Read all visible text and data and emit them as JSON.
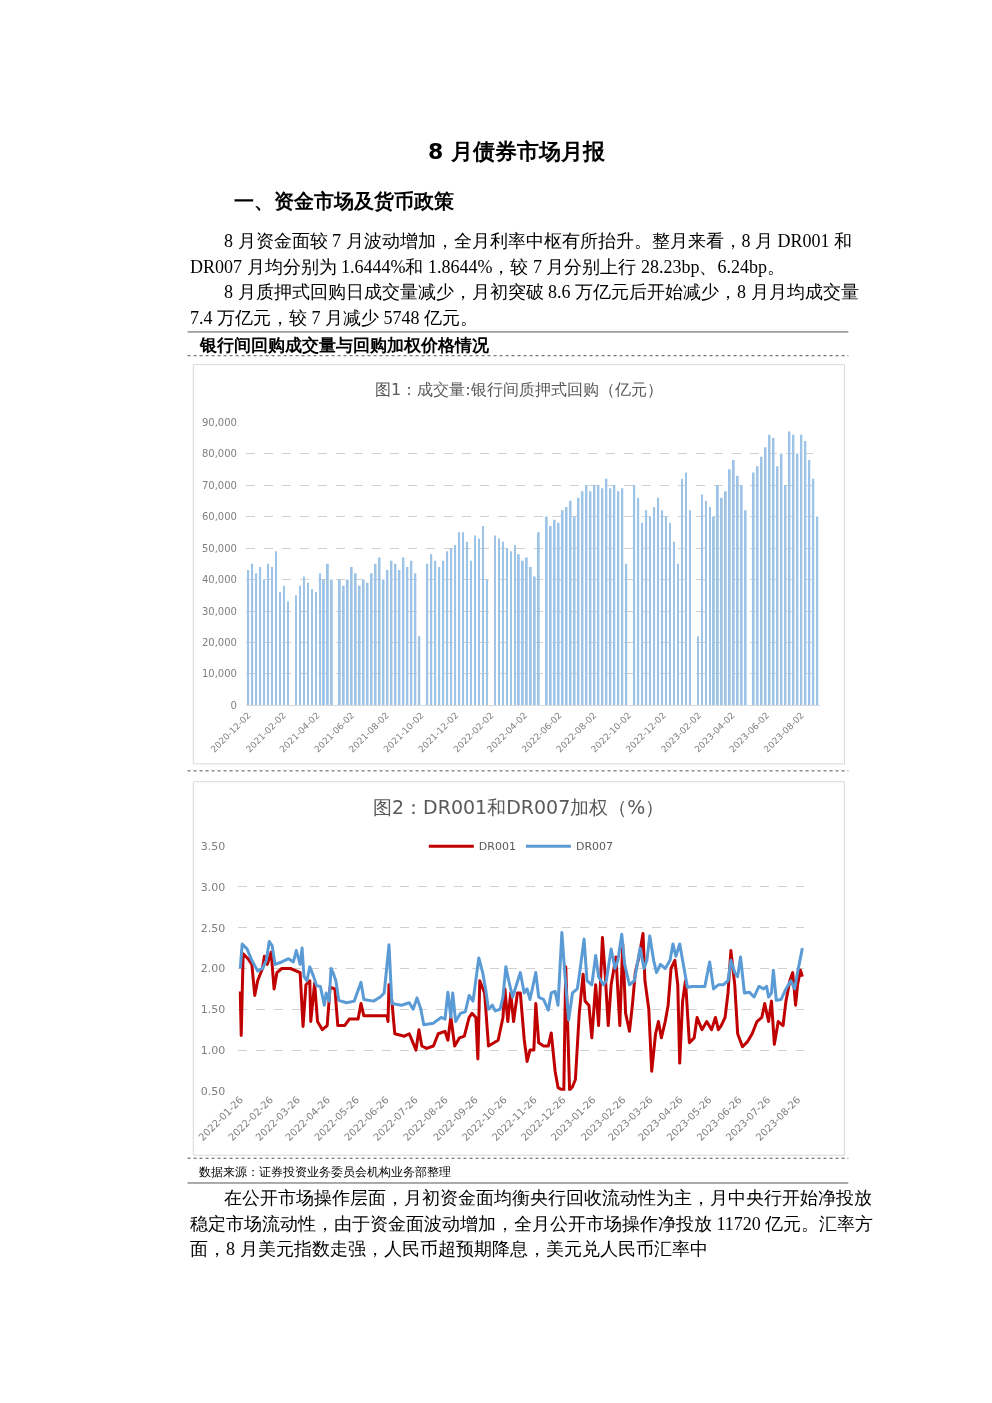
{
  "chart_data": [
    {
      "type": "bar",
      "title": "图1：成交量:银行间质押式回购（亿元）",
      "annotations": [
        "8 月债券市场月报",
        "一、资金市场及货币政策",
        "8 月资金面较 7 月波动增加，全月利率中枢有所抬升。整月来看，8 月 DR001 和 DR007 月均分别为 1.6444%和 1.8644%，较 7 月分别上行 28.23bp、6.24bp。",
        "8 月质押式回购日成交量减少，月初突破 8.6 万亿元后开始减少，8 月月均成交量 7.4 万亿元，较 7 月减少 5748 亿元。",
        "银行间回购成交量与回购加权价格情况"
      ],
      "x": [
        "2020-12-02",
        "2020-12-09",
        "2020-12-16",
        "2020-12-23",
        "2020-12-30",
        "2021-01-06",
        "2021-01-13",
        "2021-01-20",
        "2021-01-27",
        "2021-02-03",
        "2021-02-10",
        "2021-02-17",
        "2021-02-24",
        "2021-03-03",
        "2021-03-10",
        "2021-03-17",
        "2021-03-24",
        "2021-03-31",
        "2021-04-07",
        "2021-04-14",
        "2021-04-21",
        "2021-04-28",
        "2021-05-05",
        "2021-05-12",
        "2021-05-19",
        "2021-05-26",
        "2021-06-02",
        "2021-06-09",
        "2021-06-16",
        "2021-06-23",
        "2021-06-30",
        "2021-07-07",
        "2021-07-14",
        "2021-07-21",
        "2021-07-28",
        "2021-08-04",
        "2021-08-11",
        "2021-08-18",
        "2021-08-25",
        "2021-09-01",
        "2021-09-08",
        "2021-09-15",
        "2021-09-22",
        "2021-09-29",
        "2021-10-06",
        "2021-10-13",
        "2021-10-20",
        "2021-10-27",
        "2021-11-03",
        "2021-11-10",
        "2021-11-17",
        "2021-11-24",
        "2021-12-01",
        "2021-12-08",
        "2021-12-15",
        "2021-12-22",
        "2021-12-29",
        "2022-01-05",
        "2022-01-12",
        "2022-01-19",
        "2022-01-26",
        "2022-02-02",
        "2022-02-09",
        "2022-02-16",
        "2022-02-23",
        "2022-03-02",
        "2022-03-09",
        "2022-03-16",
        "2022-03-23",
        "2022-03-30",
        "2022-04-06",
        "2022-04-13",
        "2022-04-20",
        "2022-04-27",
        "2022-05-04",
        "2022-05-11",
        "2022-05-18",
        "2022-05-25",
        "2022-06-01",
        "2022-06-08",
        "2022-06-15",
        "2022-06-22",
        "2022-06-29",
        "2022-07-06",
        "2022-07-13",
        "2022-07-20",
        "2022-07-27",
        "2022-08-03",
        "2022-08-10",
        "2022-08-17",
        "2022-08-24",
        "2022-08-31",
        "2022-09-07",
        "2022-09-14",
        "2022-09-21",
        "2022-09-28",
        "2022-10-05",
        "2022-10-12",
        "2022-10-19",
        "2022-10-26",
        "2022-11-02",
        "2022-11-09",
        "2022-11-16",
        "2022-11-23",
        "2022-11-30",
        "2022-12-07",
        "2022-12-14",
        "2022-12-21",
        "2022-12-28",
        "2023-01-04",
        "2023-01-11",
        "2023-01-18",
        "2023-01-25",
        "2023-02-01",
        "2023-02-08",
        "2023-02-15",
        "2023-02-22",
        "2023-03-01",
        "2023-03-08",
        "2023-03-15",
        "2023-03-22",
        "2023-03-29",
        "2023-04-05",
        "2023-04-12",
        "2023-04-19",
        "2023-04-26",
        "2023-05-03",
        "2023-05-10",
        "2023-05-17",
        "2023-05-24",
        "2023-05-31",
        "2023-06-07",
        "2023-06-14",
        "2023-06-21",
        "2023-06-28",
        "2023-07-05",
        "2023-07-12",
        "2023-07-19",
        "2023-07-26",
        "2023-08-02",
        "2023-08-09",
        "2023-08-16",
        "2023-08-23",
        "2023-08-30"
      ],
      "values": [
        43000,
        45000,
        42000,
        44000,
        40000,
        45000,
        44000,
        49000,
        36000,
        38000,
        33000,
        null,
        35000,
        38000,
        41000,
        39000,
        37000,
        36000,
        42000,
        40000,
        45000,
        40000,
        null,
        40000,
        38000,
        40000,
        44000,
        42000,
        38000,
        40000,
        39000,
        42000,
        45000,
        47000,
        40000,
        43000,
        46000,
        45000,
        43000,
        47000,
        44000,
        46000,
        42000,
        22000,
        null,
        45000,
        48000,
        46000,
        44000,
        46000,
        49000,
        50000,
        51000,
        55000,
        55000,
        52000,
        46000,
        54000,
        53000,
        57000,
        40000,
        null,
        54000,
        53000,
        52000,
        50000,
        49000,
        51000,
        48000,
        46000,
        47000,
        44000,
        41000,
        55000,
        null,
        60000,
        57000,
        59000,
        58000,
        62000,
        63000,
        65000,
        60000,
        66000,
        68000,
        70000,
        68000,
        70000,
        70000,
        69000,
        72000,
        69000,
        70000,
        68000,
        69000,
        45000,
        null,
        70000,
        66000,
        58000,
        62000,
        60000,
        63000,
        66000,
        62000,
        60000,
        58000,
        52000,
        45000,
        72000,
        74000,
        62000,
        null,
        22000,
        67000,
        65000,
        63000,
        60000,
        70000,
        66000,
        68000,
        75000,
        78000,
        73000,
        70000,
        62000,
        null,
        74000,
        76000,
        79000,
        82000,
        86000,
        85000,
        76000,
        80000,
        70000,
        87000,
        86000,
        80000,
        86000,
        84000,
        78000,
        72000,
        60000
      ],
      "color": "#9dc3e6",
      "xlim": [
        "2020-11-28",
        "2023-09-03"
      ],
      "xticks": [
        "2020-12-02",
        "2021-02-02",
        "2021-04-02",
        "2021-06-02",
        "2021-08-02",
        "2021-10-02",
        "2021-12-02",
        "2022-02-02",
        "2022-04-02",
        "2022-06-02",
        "2022-08-02",
        "2022-10-02",
        "2022-12-02",
        "2023-02-02",
        "2023-04-02",
        "2023-06-02",
        "2023-08-02"
      ],
      "ylim": [
        0,
        90000
      ],
      "yticks": [
        0,
        {
          "value": 10000,
          "label": "10,000"
        },
        {
          "value": 20000,
          "label": "20,000"
        },
        {
          "value": 30000,
          "label": "30,000"
        },
        {
          "value": 40000,
          "label": "40,000"
        },
        {
          "value": 50000,
          "label": "50,000"
        },
        {
          "value": 60000,
          "label": "60,000"
        },
        {
          "value": 70000,
          "label": "70,000"
        },
        {
          "value": 80000,
          "label": "80,000"
        },
        {
          "value": 90000,
          "label": "90,000"
        }
      ],
      "grid": "y"
    },
    {
      "type": "line",
      "title": "图2：DR001和DR007加权（%）",
      "annotations": [
        "数据来源：证券投资业务委员会机构业务部整理",
        "在公开市场操作层面，月初资金面均衡央行回收流动性为主，月中央行开始净投放稳定市场流动性，由于资金面波动增加，全月公开市场操作净投放 11720 亿元。汇率方面，8 月美元指数走强，人民币超预期降息，美元兑人民币汇率中"
      ],
      "series": [
        {
          "name": "DR001",
          "color": "#c00000",
          "x": [
            "2022-01-26",
            "2022-01-27",
            "2022-01-29",
            "2022-02-03",
            "2022-02-07",
            "2022-02-10",
            "2022-02-13",
            "2022-02-18",
            "2022-02-20",
            "2022-02-23",
            "2022-02-27",
            "2022-03-02",
            "2022-03-05",
            "2022-03-10",
            "2022-03-19",
            "2022-03-29",
            "2022-04-01",
            "2022-04-04",
            "2022-04-08",
            "2022-04-09",
            "2022-04-13",
            "2022-04-16",
            "2022-04-21",
            "2022-04-26",
            "2022-04-29",
            "2022-05-04",
            "2022-05-07",
            "2022-05-14",
            "2022-05-19",
            "2022-05-28",
            "2022-05-31",
            "2022-06-03",
            "2022-06-13",
            "2022-06-27",
            "2022-06-28",
            "2022-06-29",
            "2022-07-02",
            "2022-07-05",
            "2022-07-15",
            "2022-07-20",
            "2022-07-27",
            "2022-07-30",
            "2022-08-02",
            "2022-08-07",
            "2022-08-14",
            "2022-08-19",
            "2022-08-26",
            "2022-08-29",
            "2022-09-01",
            "2022-09-05",
            "2022-09-10",
            "2022-09-15",
            "2022-09-20",
            "2022-09-23",
            "2022-09-27",
            "2022-09-29",
            "2022-10-01",
            "2022-10-06",
            "2022-10-10",
            "2022-10-20",
            "2022-10-25",
            "2022-10-27",
            "2022-10-30",
            "2022-11-02",
            "2022-11-05",
            "2022-11-09",
            "2022-11-12",
            "2022-11-16",
            "2022-11-19",
            "2022-11-22",
            "2022-11-26",
            "2022-11-28",
            "2022-12-01",
            "2022-12-06",
            "2022-12-11",
            "2022-12-14",
            "2022-12-18",
            "2022-12-21",
            "2022-12-27",
            "2022-12-29",
            "2022-12-31",
            "2023-01-02",
            "2023-01-05",
            "2023-01-08",
            "2023-01-12",
            "2023-01-16",
            "2023-01-18",
            "2023-01-22",
            "2023-01-25",
            "2023-01-29",
            "2023-02-01",
            "2023-02-05",
            "2023-02-08",
            "2023-02-11",
            "2023-02-14",
            "2023-02-19",
            "2023-02-23",
            "2023-02-26",
            "2023-03-01",
            "2023-03-05",
            "2023-03-08",
            "2023-03-11",
            "2023-03-15",
            "2023-03-19",
            "2023-03-21",
            "2023-03-25",
            "2023-03-28",
            "2023-04-01",
            "2023-04-04",
            "2023-04-07",
            "2023-04-11",
            "2023-04-14",
            "2023-04-17",
            "2023-04-21",
            "2023-04-24",
            "2023-04-26",
            "2023-04-29",
            "2023-05-02",
            "2023-05-06",
            "2023-05-11",
            "2023-05-14",
            "2023-05-19",
            "2023-05-24",
            "2023-05-29",
            "2023-06-02",
            "2023-06-05",
            "2023-06-08",
            "2023-06-12",
            "2023-06-15",
            "2023-06-18",
            "2023-06-22",
            "2023-06-25",
            "2023-06-30",
            "2023-07-05",
            "2023-07-10",
            "2023-07-15",
            "2023-07-20",
            "2023-07-23",
            "2023-07-27",
            "2023-07-30",
            "2023-08-02",
            "2023-08-06",
            "2023-08-11",
            "2023-08-14",
            "2023-08-18",
            "2023-08-21",
            "2023-08-24",
            "2023-08-26",
            "2023-08-29",
            "2023-08-31"
          ],
          "values": [
            1.72,
            1.18,
            2.18,
            2.12,
            2.05,
            1.67,
            1.85,
            2.0,
            2.15,
            2.05,
            2.2,
            1.75,
            1.95,
            2.0,
            2.0,
            1.95,
            1.29,
            1.8,
            1.85,
            1.35,
            1.82,
            1.35,
            1.25,
            1.3,
            1.77,
            1.75,
            1.3,
            1.3,
            1.38,
            1.38,
            1.57,
            1.42,
            1.42,
            1.42,
            1.35,
            1.8,
            1.6,
            1.2,
            1.17,
            1.2,
            1.0,
            1.25,
            1.05,
            1.02,
            1.05,
            1.2,
            1.23,
            1.12,
            1.41,
            1.05,
            1.15,
            1.17,
            1.4,
            1.45,
            1.4,
            0.89,
            1.85,
            1.7,
            1.05,
            1.12,
            1.4,
            1.75,
            1.35,
            1.7,
            1.35,
            1.7,
            1.7,
            1.13,
            0.86,
            1.0,
            1.0,
            1.57,
            1.09,
            1.05,
            1.05,
            1.21,
            0.74,
            0.54,
            0.5,
            2.02,
            1.3,
            0.51,
            0.55,
            0.64,
            1.45,
            1.93,
            1.6,
            1.55,
            1.15,
            1.8,
            1.3,
            2.38,
            1.9,
            1.3,
            1.8,
            2.14,
            1.3,
            2.3,
            1.45,
            1.23,
            1.55,
            1.95,
            2.15,
            2.43,
            1.85,
            1.5,
            0.74,
            1.2,
            1.35,
            1.15,
            1.35,
            1.55,
            2.0,
            2.1,
            1.8,
            0.84,
            1.6,
            1.85,
            1.09,
            1.15,
            1.4,
            1.25,
            1.35,
            1.25,
            1.4,
            1.25,
            1.3,
            1.4,
            1.7,
            2.22,
            1.8,
            1.2,
            1.04,
            1.1,
            1.2,
            1.35,
            1.4,
            1.57,
            1.35,
            1.6,
            1.07,
            1.35,
            1.3,
            1.6,
            1.85,
            1.95,
            1.55,
            1.8,
            1.98,
            1.9
          ]
        },
        {
          "name": "DR007",
          "color": "#5b9bd5",
          "x": [
            "2022-01-26",
            "2022-01-28",
            "2022-02-02",
            "2022-02-07",
            "2022-02-13",
            "2022-02-18",
            "2022-02-22",
            "2022-02-25",
            "2022-02-28",
            "2022-03-03",
            "2022-03-10",
            "2022-03-17",
            "2022-03-22",
            "2022-03-25",
            "2022-03-29",
            "2022-03-31",
            "2022-04-02",
            "2022-04-05",
            "2022-04-08",
            "2022-04-12",
            "2022-04-15",
            "2022-04-19",
            "2022-04-23",
            "2022-04-25",
            "2022-04-28",
            "2022-04-30",
            "2022-05-02",
            "2022-05-05",
            "2022-05-08",
            "2022-05-16",
            "2022-05-24",
            "2022-05-27",
            "2022-05-31",
            "2022-06-03",
            "2022-06-13",
            "2022-06-20",
            "2022-06-24",
            "2022-06-29",
            "2022-07-02",
            "2022-07-12",
            "2022-07-20",
            "2022-07-24",
            "2022-07-28",
            "2022-08-01",
            "2022-08-04",
            "2022-08-14",
            "2022-08-22",
            "2022-08-26",
            "2022-08-29",
            "2022-09-01",
            "2022-09-03",
            "2022-09-06",
            "2022-09-11",
            "2022-09-16",
            "2022-09-20",
            "2022-09-24",
            "2022-09-30",
            "2022-10-04",
            "2022-10-07",
            "2022-10-10",
            "2022-10-14",
            "2022-10-17",
            "2022-10-22",
            "2022-10-25",
            "2022-10-28",
            "2022-10-31",
            "2022-11-04",
            "2022-11-08",
            "2022-11-12",
            "2022-11-16",
            "2022-11-19",
            "2022-11-22",
            "2022-11-28",
            "2022-12-01",
            "2022-12-06",
            "2022-12-11",
            "2022-12-14",
            "2022-12-18",
            "2022-12-21",
            "2022-12-25",
            "2022-12-28",
            "2023-01-01",
            "2023-01-05",
            "2023-01-10",
            "2023-01-13",
            "2023-01-17",
            "2023-01-20",
            "2023-01-25",
            "2023-01-29",
            "2023-02-01",
            "2023-02-06",
            "2023-02-09",
            "2023-02-14",
            "2023-02-18",
            "2023-02-21",
            "2023-02-25",
            "2023-02-28",
            "2023-03-05",
            "2023-03-10",
            "2023-03-13",
            "2023-03-16",
            "2023-03-20",
            "2023-03-23",
            "2023-03-26",
            "2023-03-30",
            "2023-04-02",
            "2023-04-06",
            "2023-04-11",
            "2023-04-16",
            "2023-04-19",
            "2023-04-22",
            "2023-04-26",
            "2023-04-29",
            "2023-05-04",
            "2023-05-09",
            "2023-05-16",
            "2023-05-22",
            "2023-05-27",
            "2023-05-31",
            "2023-06-05",
            "2023-06-10",
            "2023-06-15",
            "2023-06-18",
            "2023-06-22",
            "2023-06-25",
            "2023-06-28",
            "2023-07-02",
            "2023-07-07",
            "2023-07-12",
            "2023-07-17",
            "2023-07-22",
            "2023-07-25",
            "2023-07-27",
            "2023-07-30",
            "2023-08-01",
            "2023-08-04",
            "2023-08-09",
            "2023-08-14",
            "2023-08-19",
            "2023-08-23",
            "2023-08-26",
            "2023-08-31"
          ],
          "values": [
            2.0,
            2.3,
            2.24,
            2.1,
            1.97,
            2.0,
            2.1,
            2.33,
            2.28,
            2.05,
            2.08,
            2.12,
            2.08,
            2.22,
            2.05,
            2.25,
            1.9,
            1.85,
            2.02,
            1.9,
            1.79,
            1.78,
            1.55,
            1.7,
            1.6,
            2.0,
            1.95,
            1.85,
            1.61,
            1.58,
            1.6,
            1.7,
            1.83,
            1.62,
            1.6,
            1.65,
            1.7,
            2.29,
            1.57,
            1.55,
            1.58,
            1.5,
            1.64,
            1.5,
            1.31,
            1.33,
            1.4,
            1.38,
            1.71,
            1.4,
            1.7,
            1.35,
            1.45,
            1.47,
            1.67,
            1.6,
            2.13,
            1.95,
            1.75,
            1.5,
            1.55,
            1.48,
            1.5,
            1.65,
            2.02,
            1.85,
            1.65,
            1.8,
            1.95,
            1.7,
            1.75,
            1.62,
            1.95,
            1.65,
            1.62,
            1.49,
            1.7,
            1.72,
            1.55,
            2.44,
            1.95,
            1.37,
            1.7,
            1.75,
            2.0,
            2.36,
            1.85,
            1.8,
            2.16,
            1.9,
            1.8,
            1.85,
            2.24,
            2.0,
            2.1,
            2.42,
            2.05,
            1.8,
            1.85,
            2.05,
            2.25,
            2.0,
            2.1,
            2.4,
            2.1,
            1.95,
            2.05,
            2.0,
            2.1,
            2.3,
            2.15,
            2.3,
            2.1,
            1.77,
            1.78,
            1.78,
            1.78,
            2.08,
            1.75,
            1.8,
            1.8,
            1.85,
            2.1,
            1.95,
            1.9,
            2.14,
            1.7,
            1.71,
            1.65,
            1.78,
            1.75,
            1.78,
            1.65,
            1.7,
            1.98,
            1.61,
            1.62,
            1.75,
            1.85,
            1.75,
            1.95,
            2.25
          ]
        }
      ],
      "xlim": [
        "2022-01-24",
        "2023-09-02"
      ],
      "xticks": [
        "2022-01-26",
        "2022-02-26",
        "2022-03-26",
        "2022-04-26",
        "2022-05-26",
        "2022-06-26",
        "2022-07-26",
        "2022-08-26",
        "2022-09-26",
        "2022-10-26",
        "2022-11-26",
        "2022-12-26",
        "2023-01-26",
        "2023-02-26",
        "2023-03-26",
        "2023-04-26",
        "2023-05-26",
        "2023-06-26",
        "2023-07-26",
        "2023-08-26"
      ],
      "ylim": [
        0.5,
        3.5
      ],
      "yticks": [
        {
          "value": 0.5,
          "label": "0.50"
        },
        {
          "value": 1.0,
          "label": "1.00"
        },
        {
          "value": 1.5,
          "label": "1.50"
        },
        {
          "value": 2.0,
          "label": "2.00"
        },
        {
          "value": 2.5,
          "label": "2.50"
        },
        {
          "value": 3.0,
          "label": "3.00"
        },
        {
          "value": 3.5,
          "label": "3.50"
        }
      ],
      "grid": "y",
      "legend": "top"
    }
  ]
}
